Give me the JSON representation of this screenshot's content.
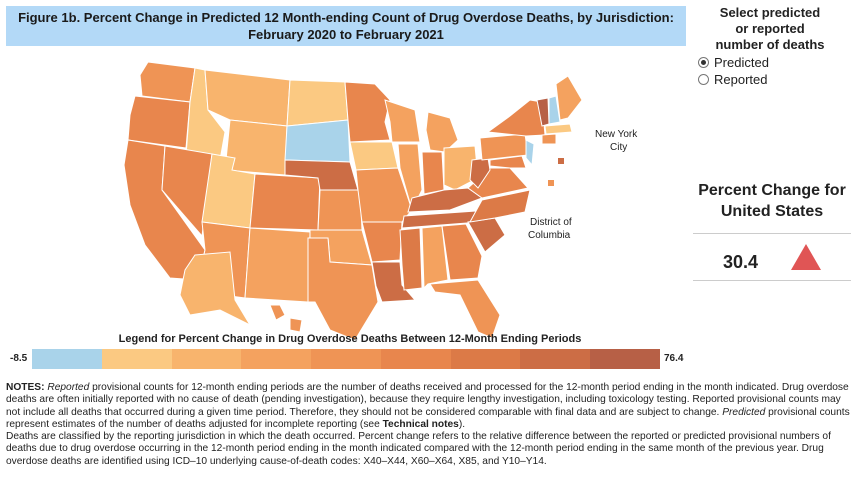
{
  "title": {
    "line1": "Figure 1b. Percent Change in Predicted 12 Month-ending Count of Drug Overdose Deaths, by Jurisdiction:",
    "line2": "February 2020 to February 2021"
  },
  "selector": {
    "header_line1": "Select predicted",
    "header_line2": "or reported",
    "header_line3": "number of deaths",
    "options": [
      {
        "label": "Predicted",
        "selected": true
      },
      {
        "label": "Reported",
        "selected": false
      }
    ]
  },
  "map_labels": {
    "nyc_line1": "New York",
    "nyc_line2": "City",
    "dc_line1": "District of",
    "dc_line2": "Columbia"
  },
  "us_summary": {
    "title_line1": "Percent Change for",
    "title_line2": "United States",
    "value": "30.4",
    "trend_icon": "triangle-up-icon",
    "trend_color": "#e05555"
  },
  "legend": {
    "title": "Legend for Percent Change in Drug Overdose Deaths Between 12-Month Ending Periods",
    "min": "-8.5",
    "max": "76.4",
    "colors": [
      "#a9d3ea",
      "#fbc982",
      "#f8b46d",
      "#f4a25f",
      "#ef9455",
      "#e8864d",
      "#dc7a47",
      "#cc6d45",
      "#b76046"
    ]
  },
  "notes": {
    "p1_label": "NOTES:",
    "p1_em": "Reported",
    "p1_a": " provisional counts for 12-month ending periods are the number of deaths received and processed for the 12-month period ending in the month indicated. Drug overdose deaths are often initially reported with no cause of death (pending investigation), because they require lengthy investigation, including toxicology testing. Reported provisional counts may not include all deaths that occurred during a given time period. Therefore, they should not be considered comparable with final data and are subject to change.",
    "p1_em2": "Predicted",
    "p1_b": " provisional counts represent estimates of the number of deaths adjusted for incomplete reporting (see ",
    "p1_link": "Technical notes",
    "p1_c": ").",
    "p2": "Deaths are classified by the reporting jurisdiction in which the death occurred. Percent change refers to the relative difference between the reported or predicted provisional numbers of deaths due to drug overdose occurring in the 12-month period ending in the month indicated compared with the 12-month period ending in the same month of the previous year. Drug overdose deaths are identified using ICD–10 underlying cause-of-death codes: X40–X44, X60–X64, X85, and Y10–Y14."
  }
}
